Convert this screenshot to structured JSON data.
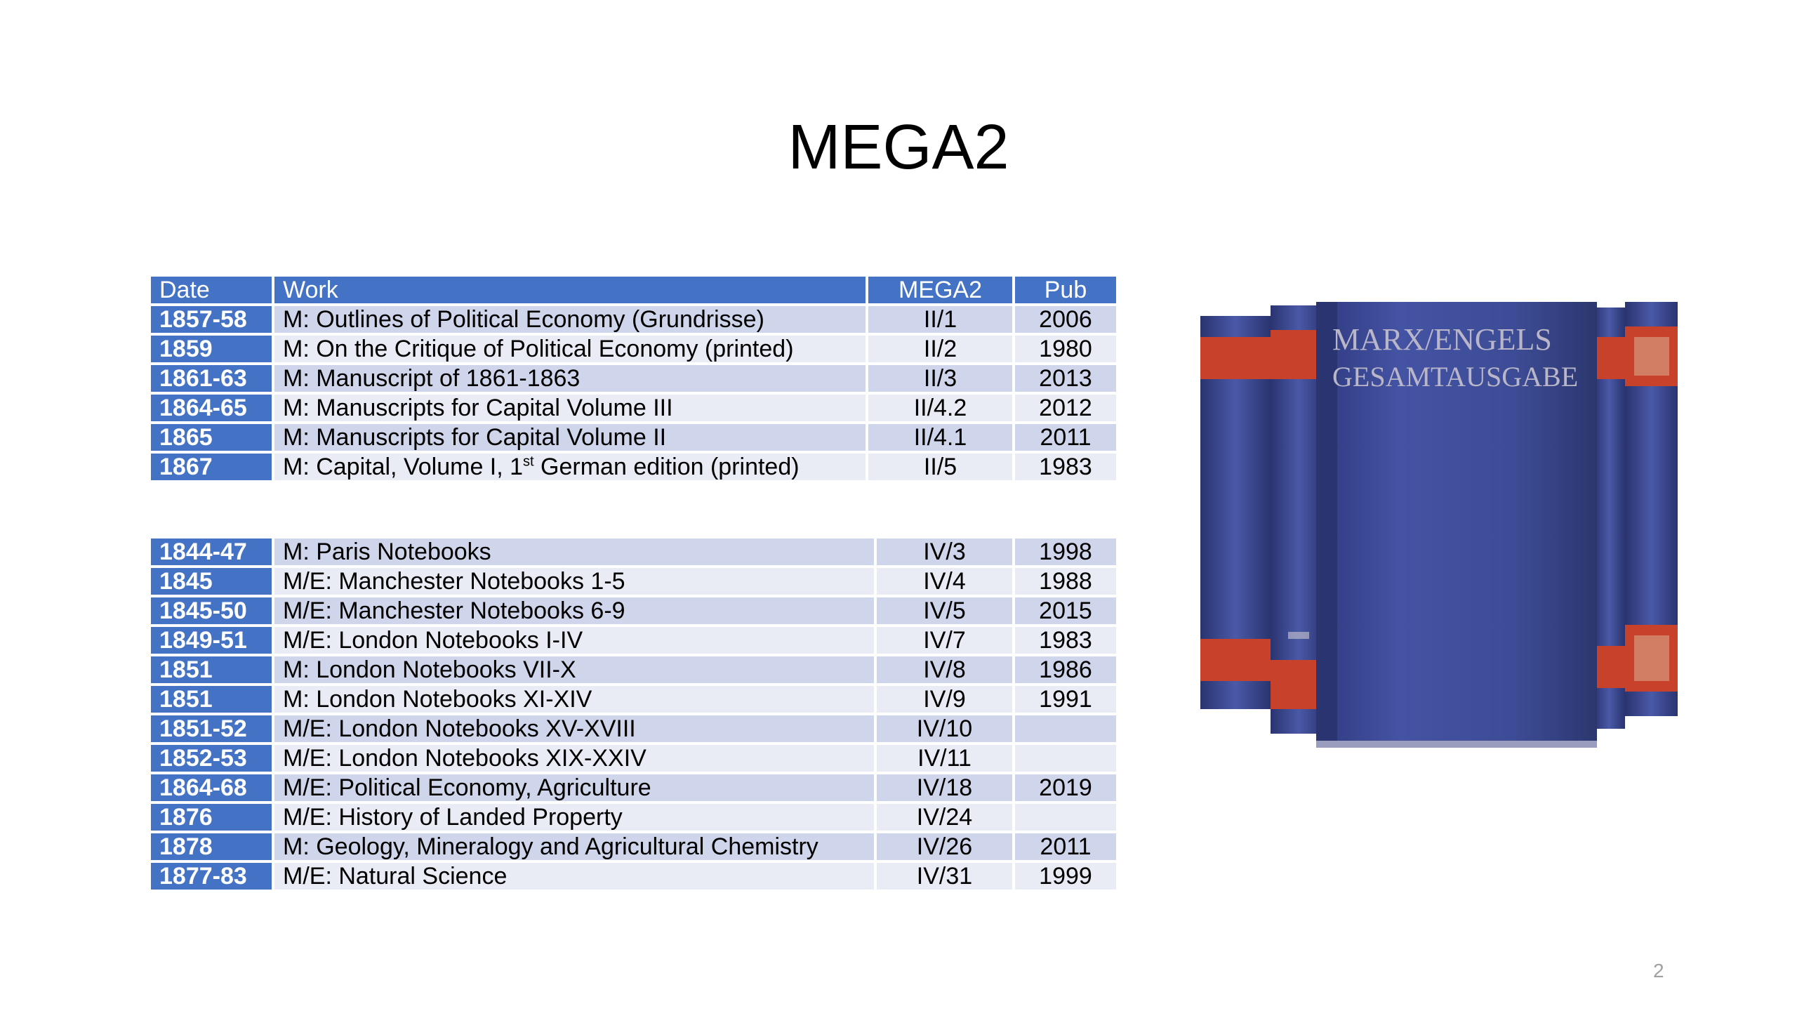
{
  "slide": {
    "title": "MEGA2",
    "page_number": "2"
  },
  "table": {
    "headers": [
      "Date",
      "Work",
      "MEGA2",
      "Pub"
    ],
    "group1": [
      {
        "date": "1857-58",
        "work": "M: Outlines of Political Economy (Grundrisse)",
        "mega": "II/1",
        "pub": "2006"
      },
      {
        "date": "1859",
        "work": "M: On the Critique of Political Economy (printed)",
        "mega": "II/2",
        "pub": "1980"
      },
      {
        "date": "1861-63",
        "work": "M: Manuscript of 1861-1863",
        "mega": "II/3",
        "pub": "2013"
      },
      {
        "date": "1864-65",
        "work": "M: Manuscripts for Capital Volume III",
        "mega": "II/4.2",
        "pub": "2012"
      },
      {
        "date": "1865",
        "work": "M: Manuscripts for Capital Volume II",
        "mega": "II/4.1",
        "pub": "2011"
      },
      {
        "date": "1867",
        "work_pre": "M: Capital, Volume I, 1",
        "work_sup": "st",
        "work_post": " German edition (printed)",
        "mega": "II/5",
        "pub": "1983"
      }
    ],
    "group2": [
      {
        "date": "1844-47",
        "work": "M: Paris Notebooks",
        "mega": "IV/3",
        "pub": "1998"
      },
      {
        "date": "1845",
        "work": "M/E: Manchester Notebooks 1-5",
        "mega": "IV/4",
        "pub": "1988"
      },
      {
        "date": "1845-50",
        "work": "M/E: Manchester Notebooks 6-9",
        "mega": "IV/5",
        "pub": "2015"
      },
      {
        "date": "1849-51",
        "work": "M/E: London Notebooks I-IV",
        "mega": "IV/7",
        "pub": "1983"
      },
      {
        "date": "1851",
        "work": "M: London Notebooks VII-X",
        "mega": "IV/8",
        "pub": "1986"
      },
      {
        "date": "1851",
        "work": "M: London Notebooks XI-XIV",
        "mega": "IV/9",
        "pub": "1991"
      },
      {
        "date": "1851-52",
        "work": "M/E: London Notebooks XV-XVIII",
        "mega": "IV/10",
        "pub": ""
      },
      {
        "date": "1852-53",
        "work": "M/E: London Notebooks XIX-XXIV",
        "mega": "IV/11",
        "pub": ""
      },
      {
        "date": "1864-68",
        "work": "M/E: Political Economy, Agriculture",
        "mega": "IV/18",
        "pub": "2019"
      },
      {
        "date": "1876",
        "work": "M/E: History of Landed Property",
        "mega": "IV/24",
        "pub": ""
      },
      {
        "date": "1878",
        "work": "M: Geology, Mineralogy and Agricultural Chemistry",
        "mega": "IV/26",
        "pub": "2011"
      },
      {
        "date": "1877-83",
        "work": "M/E: Natural Science",
        "mega": "IV/31",
        "pub": "1999"
      }
    ]
  },
  "image": {
    "spine_text_line1": "MARX/ENGELS",
    "spine_text_line2": "GESAMTAUSGABE",
    "cover_color": "#3d4c96",
    "band_color": "#c7412b",
    "lettering_color": "#b9b6c9"
  },
  "colors": {
    "header_blue": "#4472c4",
    "row_band_dark": "#cfd5ea",
    "row_band_light": "#e9ebf5"
  }
}
